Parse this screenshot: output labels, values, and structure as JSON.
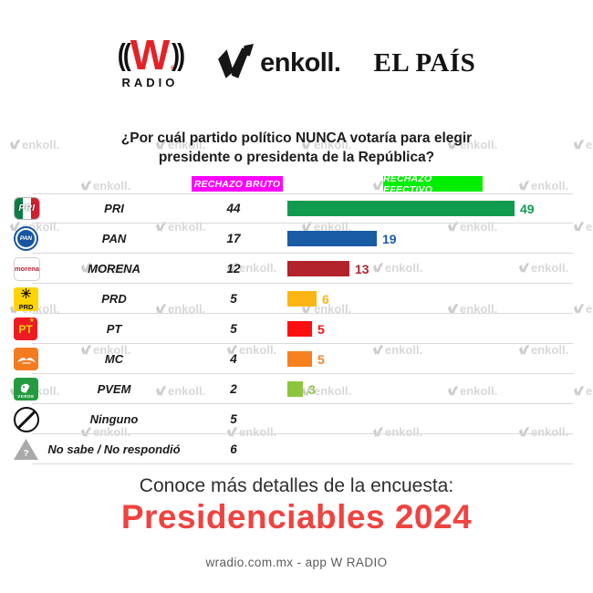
{
  "brand": {
    "wradio": {
      "left_arc": "((",
      "letter": "W",
      "reg": "®",
      "right_arc": "))",
      "radio": "RADIO"
    },
    "enkoll_wordmark": "enkoll.",
    "elpais": "EL PAÍS"
  },
  "title": {
    "line1": "¿Por cuál partido político NUNCA votaría para elegir",
    "line2": "presidente o presidenta de la República?"
  },
  "column_headers": {
    "bruto": {
      "label": "RECHAZO BRUTO",
      "bg": "#ff00ff"
    },
    "efectivo": {
      "label": "RECHAZO EFECTIVO",
      "bg": "#00ee00"
    }
  },
  "table": {
    "rows": [
      {
        "logo": "pri",
        "party": "PRI",
        "bruto": 44,
        "efectivo": 49,
        "color": "#119b4f"
      },
      {
        "logo": "pan",
        "party": "PAN",
        "bruto": 17,
        "efectivo": 19,
        "color": "#1a5ba6"
      },
      {
        "logo": "morena",
        "party": "MORENA",
        "bruto": 12,
        "efectivo": 13,
        "color": "#b2232b"
      },
      {
        "logo": "prd",
        "party": "PRD",
        "bruto": 5,
        "efectivo": 6,
        "color": "#fcb513"
      },
      {
        "logo": "pt",
        "party": "PT",
        "bruto": 5,
        "efectivo": 5,
        "color": "#fe0f0f"
      },
      {
        "logo": "mc",
        "party": "MC",
        "bruto": 4,
        "efectivo": 5,
        "color": "#f58220"
      },
      {
        "logo": "pvem",
        "party": "PVEM",
        "bruto": 2,
        "efectivo": 3,
        "color": "#8cc63e"
      },
      {
        "logo": "ninguno",
        "party": "Ninguno",
        "bruto": 5,
        "efectivo": null,
        "color": null
      },
      {
        "logo": "nosabe",
        "party": "No sabe / No respondió",
        "bruto": 6,
        "efectivo": null,
        "color": null
      }
    ]
  },
  "chart_data": {
    "type": "bar",
    "title": "¿Por cuál partido político NUNCA votaría para elegir presidente o presidenta de la República?",
    "categories": [
      "PRI",
      "PAN",
      "MORENA",
      "PRD",
      "PT",
      "MC",
      "PVEM",
      "Ninguno",
      "No sabe / No respondió"
    ],
    "series": [
      {
        "name": "RECHAZO BRUTO",
        "values": [
          44,
          17,
          12,
          5,
          5,
          4,
          2,
          5,
          6
        ]
      },
      {
        "name": "RECHAZO EFECTIVO",
        "values": [
          49,
          19,
          13,
          6,
          5,
          5,
          3,
          null,
          null
        ]
      }
    ],
    "bar_colors": [
      "#119b4f",
      "#1a5ba6",
      "#b2232b",
      "#fcb513",
      "#fe0f0f",
      "#f58220",
      "#8cc63e",
      null,
      null
    ],
    "orientation": "horizontal",
    "xlim": [
      0,
      55
    ],
    "grid": false,
    "legend_position": "top",
    "value_labels": true
  },
  "icons": {
    "question": "?",
    "star": "★"
  },
  "footer": {
    "prompt": "Conoce más detalles de la encuesta:",
    "headline": "Presidenciables 2024",
    "credit": "wradio.com.mx - app W RADIO",
    "accent": "#ef4340"
  },
  "watermark": {
    "text": "enkoll."
  }
}
